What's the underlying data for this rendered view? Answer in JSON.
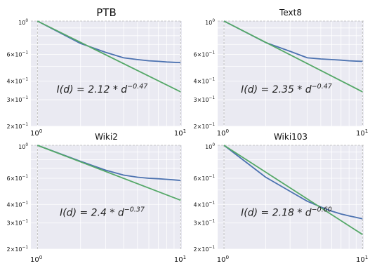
{
  "colors": {
    "plot_bg": "#eaeaf2",
    "grid": "#ffffff",
    "dashed_line": "#b7b7b7",
    "empirical": "#4c72b0",
    "fit": "#55a868",
    "text": "#111111"
  },
  "chart_data": [
    {
      "type": "line",
      "title": "PTB",
      "xscale": "log",
      "yscale": "log",
      "xlim": [
        0.9,
        10.2
      ],
      "ylim": [
        0.2,
        1.0
      ],
      "xtick_labels": [
        "10^0",
        "10^1"
      ],
      "ytick_labels": [
        "10^0",
        "6×10^-1",
        "4×10^-1",
        "3×10^-1",
        "2×10^-1"
      ],
      "annotation": "I(d) = 2.12 * d^-0.47",
      "series": [
        {
          "role": "empirical",
          "x": [
            1,
            2,
            3,
            4,
            5,
            6,
            7,
            8,
            9,
            10
          ],
          "y": [
            1.0,
            0.71,
            0.62,
            0.57,
            0.555,
            0.545,
            0.54,
            0.535,
            0.532,
            0.53
          ]
        },
        {
          "role": "fit",
          "x": [
            1,
            10
          ],
          "y": [
            1.0,
            0.339
          ]
        }
      ]
    },
    {
      "type": "line",
      "title": "Text8",
      "xscale": "log",
      "yscale": "log",
      "xlim": [
        0.9,
        10.2
      ],
      "ylim": [
        0.2,
        1.0
      ],
      "xtick_labels": [
        "10^0",
        "10^1"
      ],
      "ytick_labels": [
        "10^0",
        "6×10^-1",
        "4×10^-1",
        "3×10^-1",
        "2×10^-1"
      ],
      "annotation": "I(d) = 2.35 * d^-0.47",
      "series": [
        {
          "role": "empirical",
          "x": [
            1,
            2,
            3,
            4,
            5,
            6,
            7,
            8,
            9,
            10
          ],
          "y": [
            1.0,
            0.72,
            0.63,
            0.57,
            0.56,
            0.555,
            0.55,
            0.545,
            0.542,
            0.54
          ]
        },
        {
          "role": "fit",
          "x": [
            1,
            10
          ],
          "y": [
            1.0,
            0.339
          ]
        }
      ]
    },
    {
      "type": "line",
      "title": "Wiki2",
      "xscale": "log",
      "yscale": "log",
      "xlim": [
        0.9,
        10.2
      ],
      "ylim": [
        0.2,
        1.0
      ],
      "xtick_labels": [
        "10^0",
        "10^1"
      ],
      "ytick_labels": [
        "10^0",
        "6×10^-1",
        "4×10^-1",
        "3×10^-1",
        "2×10^-1"
      ],
      "annotation": "I(d) = 2.4 * d^-0.37",
      "series": [
        {
          "role": "empirical",
          "x": [
            1,
            2,
            3,
            4,
            5,
            6,
            7,
            8,
            9,
            10
          ],
          "y": [
            1.0,
            0.78,
            0.68,
            0.63,
            0.61,
            0.6,
            0.595,
            0.59,
            0.585,
            0.58
          ]
        },
        {
          "role": "fit",
          "x": [
            1,
            10
          ],
          "y": [
            1.0,
            0.427
          ]
        }
      ]
    },
    {
      "type": "line",
      "title": "Wiki103",
      "xscale": "log",
      "yscale": "log",
      "xlim": [
        0.9,
        10.2
      ],
      "ylim": [
        0.2,
        1.0
      ],
      "xtick_labels": [
        "10^0",
        "10^1"
      ],
      "ytick_labels": [
        "10^0",
        "6×10^-1",
        "4×10^-1",
        "3×10^-1",
        "2×10^-1"
      ],
      "annotation": "I(d) = 2.18 * d^-0.60",
      "series": [
        {
          "role": "empirical",
          "x": [
            1,
            2,
            3,
            4,
            5,
            6,
            7,
            8,
            9,
            10
          ],
          "y": [
            1.0,
            0.61,
            0.49,
            0.42,
            0.385,
            0.36,
            0.345,
            0.335,
            0.327,
            0.32
          ]
        },
        {
          "role": "fit",
          "x": [
            1,
            10
          ],
          "y": [
            1.0,
            0.251
          ]
        }
      ]
    }
  ]
}
